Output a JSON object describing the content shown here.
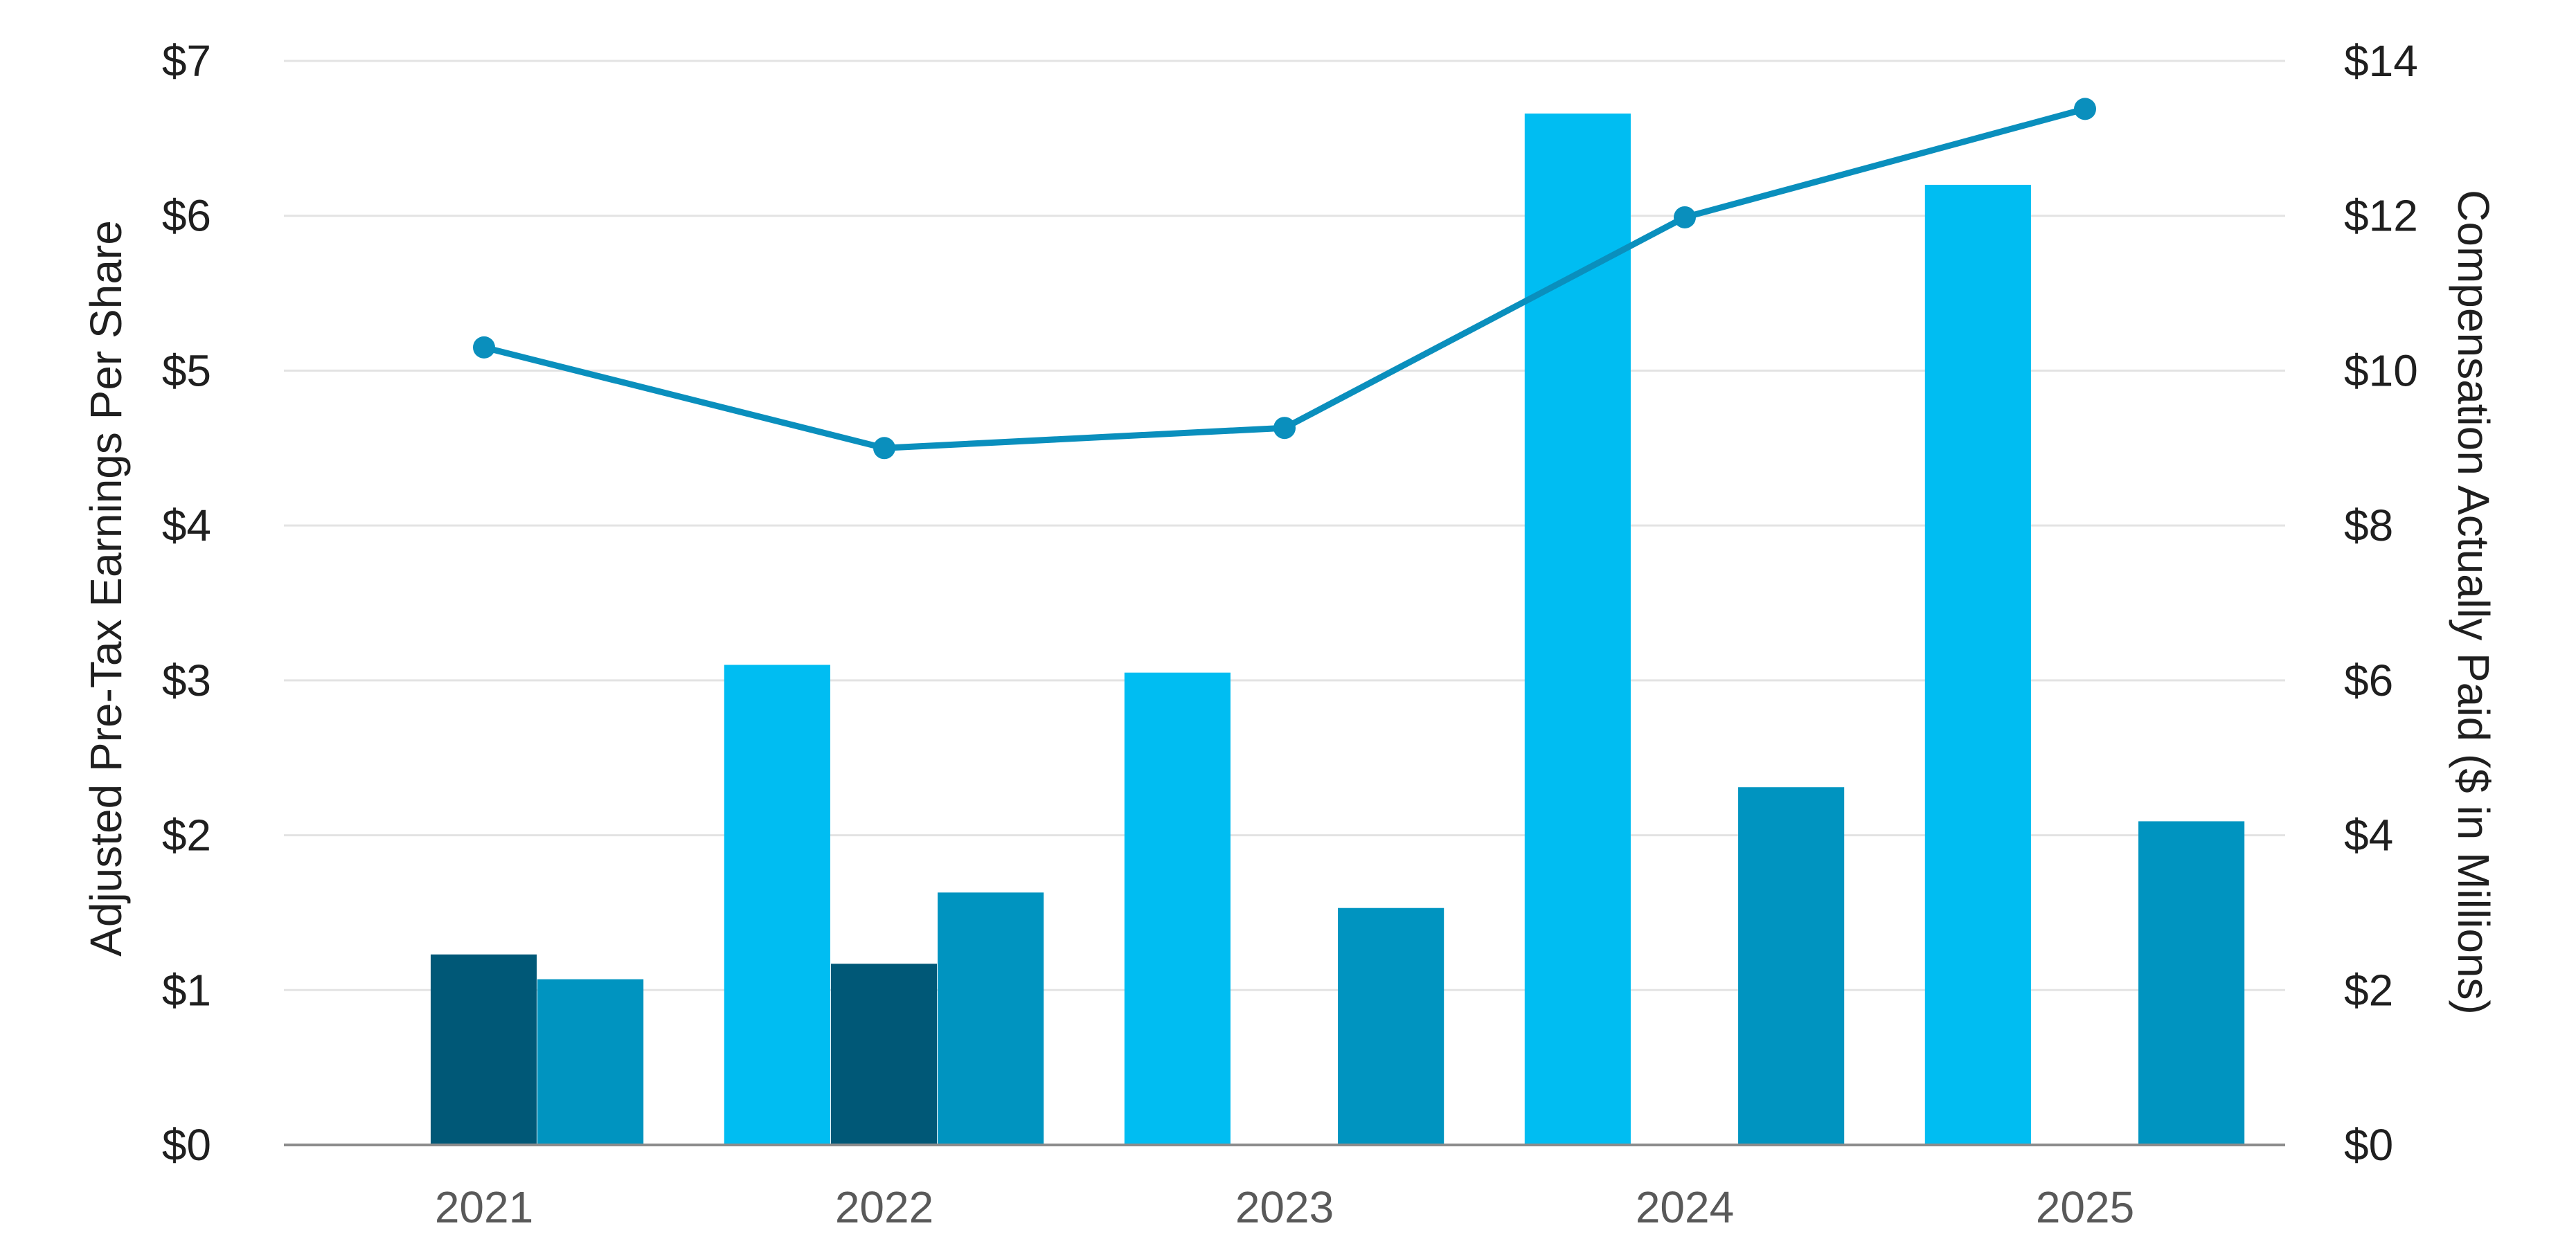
{
  "chart_data": {
    "type": "bar",
    "categories": [
      "2021",
      "2022",
      "2023",
      "2024",
      "2025"
    ],
    "left_axis": {
      "title": "Adjusted Pre-Tax Earnings Per Share",
      "range": [
        0,
        7
      ],
      "ticks": [
        "$0",
        "$1",
        "$2",
        "$3",
        "$4",
        "$5",
        "$6",
        "$7"
      ]
    },
    "right_axis": {
      "title": "Compensation Actually Paid ($ in Millions)",
      "range": [
        0,
        14
      ],
      "ticks": [
        "$0",
        "$2",
        "$4",
        "$6",
        "$8",
        "$10",
        "$12",
        "$14"
      ]
    },
    "grid": true,
    "legend": "none",
    "series": [
      {
        "type": "bar",
        "axis": "left",
        "color": "#00bdf2",
        "values": [
          null,
          3.1,
          3.05,
          6.66,
          6.2
        ]
      },
      {
        "type": "bar",
        "axis": "left",
        "color": "#005877",
        "values": [
          1.23,
          1.17,
          null,
          null,
          null
        ]
      },
      {
        "type": "bar",
        "axis": "left",
        "color": "#0094c0",
        "values": [
          1.07,
          1.63,
          1.53,
          2.31,
          2.09
        ]
      },
      {
        "type": "line",
        "axis": "right",
        "color": "#0a8fbd",
        "values": [
          10.3,
          9.0,
          9.26,
          11.98,
          13.38
        ]
      }
    ]
  }
}
